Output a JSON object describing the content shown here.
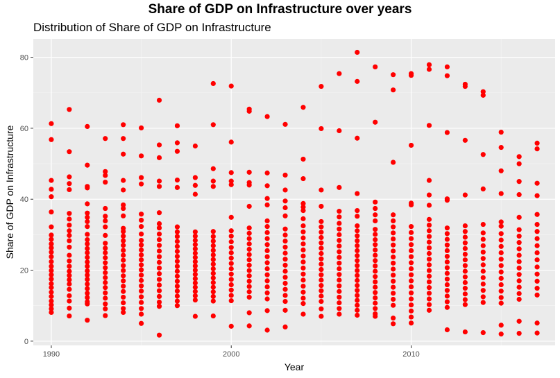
{
  "chart_data": {
    "type": "scatter",
    "title": "Share of GDP on Infrastructure over years",
    "subtitle": "Distribution of Share of GDP on Infrastructure",
    "xlabel": "Year",
    "ylabel": "Share of GDP on Infrastructure",
    "xlim": [
      1989,
      2018
    ],
    "ylim": [
      -1.2,
      85.2
    ],
    "x_ticks": [
      1990,
      2000,
      2010
    ],
    "y_ticks": [
      0,
      20,
      40,
      60,
      80
    ],
    "grid": true,
    "point_color": "#ff0000",
    "panel_color": "#ebebeb",
    "series": [
      {
        "x": 1990,
        "y": [
          61.3,
          56.8,
          45.3,
          42.8,
          40.7,
          36.4,
          32.2,
          29.9,
          28.7,
          27.4,
          26.3,
          25.1,
          23.8,
          22.4,
          21.1,
          19.9,
          18.7,
          17.5,
          16.2,
          15.1,
          13.8,
          12.6,
          11.3,
          10.2,
          9.1,
          8.1
        ]
      },
      {
        "x": 1991,
        "y": [
          65.3,
          53.4,
          46.3,
          44.4,
          42.7,
          36.0,
          34.4,
          32.7,
          31.1,
          29.8,
          28.3,
          26.5,
          24.2,
          22.6,
          21.1,
          19.7,
          18.5,
          17.3,
          16.1,
          14.6,
          12.8,
          11.3,
          9.3,
          7.1
        ]
      },
      {
        "x": 1992,
        "y": [
          60.5,
          49.6,
          43.6,
          43.2,
          38.7,
          36.1,
          34.9,
          33.7,
          32.3,
          30.1,
          28.6,
          27.4,
          26.1,
          24.9,
          23.6,
          22.3,
          21.1,
          19.8,
          18.6,
          17.4,
          16.1,
          14.8,
          13.5,
          12.3,
          11.1,
          10.5,
          5.9
        ]
      },
      {
        "x": 1993,
        "y": [
          57.1,
          47.8,
          46.7,
          44.8,
          37.4,
          35.2,
          33.9,
          32.2,
          29.8,
          27.6,
          26.2,
          24.9,
          23.5,
          22.1,
          20.7,
          19.3,
          17.9,
          16.5,
          15.1,
          13.6,
          12.1,
          10.5,
          9.1,
          7.2
        ]
      },
      {
        "x": 1994,
        "y": [
          61.0,
          57.1,
          52.7,
          45.3,
          42.6,
          38.4,
          37.4,
          35.3,
          31.8,
          30.9,
          29.6,
          28.3,
          27.0,
          25.6,
          24.2,
          22.8,
          21.3,
          19.9,
          18.4,
          17.0,
          15.5,
          14.0,
          12.4,
          10.8,
          9.2,
          8.1
        ]
      },
      {
        "x": 1995,
        "y": [
          60.1,
          52.2,
          46.1,
          44.3,
          35.8,
          34.1,
          32.3,
          30.2,
          28.4,
          27.1,
          25.7,
          24.3,
          22.9,
          21.5,
          20.1,
          18.6,
          17.1,
          15.6,
          14.1,
          12.5,
          10.9,
          9.2,
          7.6,
          5.0
        ]
      },
      {
        "x": 1996,
        "y": [
          67.9,
          55.3,
          51.7,
          45.1,
          43.6,
          36.2,
          33.1,
          31.9,
          30.2,
          28.6,
          27.0,
          25.4,
          23.8,
          22.2,
          20.6,
          19.0,
          17.4,
          15.8,
          14.2,
          12.6,
          11.0,
          9.8,
          1.7
        ]
      },
      {
        "x": 1997,
        "y": [
          60.7,
          55.9,
          53.5,
          45.4,
          43.3,
          32.2,
          30.8,
          29.5,
          28.1,
          26.7,
          25.3,
          23.9,
          22.5,
          21.1,
          19.7,
          18.3,
          16.9,
          15.5,
          14.1,
          12.7,
          11.3,
          10.0
        ]
      },
      {
        "x": 1998,
        "y": [
          55.0,
          46.1,
          43.9,
          41.4,
          30.8,
          29.6,
          28.4,
          27.2,
          26.0,
          24.8,
          23.6,
          22.4,
          21.2,
          20.0,
          18.8,
          17.6,
          16.4,
          15.2,
          14.0,
          12.8,
          11.6,
          7.0
        ]
      },
      {
        "x": 1999,
        "y": [
          72.6,
          61.0,
          48.6,
          45.1,
          43.6,
          30.9,
          29.5,
          28.2,
          26.9,
          25.6,
          24.3,
          23.0,
          21.7,
          20.4,
          19.1,
          17.8,
          16.5,
          15.2,
          13.9,
          12.6,
          11.3,
          7.1
        ]
      },
      {
        "x": 2000,
        "y": [
          71.9,
          56.1,
          47.5,
          45.1,
          44.1,
          34.9,
          31.1,
          29.6,
          28.0,
          26.4,
          24.9,
          23.4,
          21.9,
          20.4,
          18.9,
          17.4,
          15.9,
          14.4,
          12.9,
          11.4,
          4.2
        ]
      },
      {
        "x": 2001,
        "y": [
          65.4,
          64.8,
          47.6,
          44.7,
          44.0,
          38.0,
          31.9,
          30.4,
          28.9,
          27.4,
          25.9,
          24.4,
          22.9,
          21.4,
          19.9,
          18.4,
          16.9,
          15.4,
          13.9,
          12.4,
          8.0,
          4.3
        ]
      },
      {
        "x": 2002,
        "y": [
          63.3,
          47.4,
          43.8,
          40.2,
          38.4,
          33.9,
          32.3,
          30.6,
          28.9,
          27.2,
          25.5,
          23.8,
          22.1,
          20.4,
          18.7,
          17.0,
          15.3,
          13.6,
          11.9,
          8.6,
          3.1
        ]
      },
      {
        "x": 2003,
        "y": [
          61.1,
          46.8,
          42.6,
          39.5,
          37.6,
          35.3,
          31.6,
          29.9,
          28.2,
          26.5,
          24.8,
          23.1,
          21.4,
          19.7,
          18.0,
          16.3,
          14.6,
          12.9,
          11.2,
          8.7,
          4.0
        ]
      },
      {
        "x": 2004,
        "y": [
          65.9,
          51.3,
          45.8,
          38.8,
          37.8,
          36.8,
          34.5,
          32.5,
          30.8,
          29.1,
          27.4,
          25.7,
          24.0,
          22.3,
          20.6,
          18.9,
          17.2,
          15.5,
          13.8,
          12.1,
          10.6,
          7.6
        ]
      },
      {
        "x": 2005,
        "y": [
          71.8,
          59.9,
          42.6,
          38.0,
          33.7,
          32.2,
          30.7,
          29.2,
          27.7,
          26.2,
          24.7,
          23.2,
          21.7,
          20.2,
          18.7,
          17.2,
          15.7,
          14.2,
          12.7,
          11.2,
          9.1,
          7.0
        ]
      },
      {
        "x": 2006,
        "y": [
          75.4,
          59.3,
          43.3,
          36.6,
          35.0,
          33.2,
          31.6,
          30.0,
          28.4,
          26.8,
          25.2,
          23.6,
          22.0,
          20.4,
          18.8,
          17.2,
          15.6,
          14.0,
          12.4,
          10.8,
          9.2,
          7.6
        ]
      },
      {
        "x": 2007,
        "y": [
          81.4,
          73.2,
          57.2,
          41.6,
          36.8,
          35.2,
          32.5,
          31.1,
          29.7,
          28.3,
          26.9,
          25.5,
          24.1,
          22.7,
          21.3,
          19.9,
          18.5,
          17.1,
          15.7,
          14.3,
          12.9,
          11.5,
          10.1,
          8.7,
          7.3
        ]
      },
      {
        "x": 2008,
        "y": [
          77.3,
          61.7,
          39.2,
          37.4,
          35.6,
          33.9,
          31.5,
          30.1,
          28.6,
          27.2,
          25.7,
          24.2,
          22.7,
          21.2,
          19.7,
          18.2,
          16.7,
          15.2,
          13.7,
          12.2,
          10.7,
          9.2,
          7.7,
          7.0
        ]
      },
      {
        "x": 2009,
        "y": [
          75.1,
          70.8,
          50.4,
          35.6,
          33.9,
          32.2,
          30.5,
          28.8,
          27.1,
          25.4,
          23.7,
          22.0,
          20.3,
          18.6,
          16.9,
          15.2,
          13.5,
          11.8,
          10.1,
          6.5,
          4.9
        ]
      },
      {
        "x": 2010,
        "y": [
          75.4,
          74.9,
          55.2,
          38.9,
          38.4,
          32.3,
          30.6,
          28.9,
          27.2,
          25.5,
          23.8,
          22.1,
          20.4,
          18.7,
          17.0,
          15.3,
          13.6,
          11.9,
          10.2,
          8.5,
          6.8,
          5.1
        ]
      },
      {
        "x": 2011,
        "y": [
          77.9,
          76.6,
          60.8,
          45.3,
          41.2,
          38.3,
          34.3,
          32.7,
          31.1,
          29.5,
          27.9,
          26.3,
          24.7,
          23.1,
          21.5,
          19.9,
          18.3,
          16.7,
          15.1,
          13.5,
          11.9,
          10.3,
          8.7
        ]
      },
      {
        "x": 2012,
        "y": [
          77.3,
          74.8,
          58.8,
          40.1,
          39.7,
          31.9,
          30.3,
          28.7,
          27.1,
          25.5,
          23.9,
          22.3,
          20.7,
          19.1,
          17.5,
          15.9,
          14.3,
          12.7,
          11.1,
          9.5,
          3.2
        ]
      },
      {
        "x": 2013,
        "y": [
          72.4,
          71.8,
          56.6,
          41.2,
          32.5,
          30.9,
          29.3,
          27.7,
          26.1,
          24.5,
          22.9,
          21.3,
          19.7,
          18.1,
          16.5,
          14.9,
          13.3,
          11.7,
          10.3,
          2.6
        ]
      },
      {
        "x": 2014,
        "y": [
          70.3,
          69.3,
          52.6,
          42.9,
          32.9,
          30.5,
          28.7,
          26.9,
          25.1,
          23.3,
          21.5,
          19.7,
          17.9,
          16.1,
          14.3,
          12.5,
          10.9,
          2.4
        ]
      },
      {
        "x": 2015,
        "y": [
          58.9,
          54.6,
          48.0,
          41.6,
          33.6,
          32.4,
          30.3,
          28.5,
          26.7,
          24.9,
          23.1,
          21.3,
          19.5,
          17.7,
          15.9,
          14.1,
          12.3,
          10.7,
          4.5,
          2.0
        ]
      },
      {
        "x": 2016,
        "y": [
          52.0,
          50.0,
          45.0,
          41.3,
          34.9,
          31.4,
          29.6,
          27.8,
          26.0,
          24.2,
          22.4,
          20.6,
          18.8,
          17.0,
          15.2,
          13.4,
          11.8,
          5.6,
          2.2
        ]
      },
      {
        "x": 2017,
        "y": [
          55.8,
          54.2,
          44.5,
          41.0,
          35.7,
          32.9,
          30.9,
          28.9,
          26.9,
          24.9,
          22.9,
          20.9,
          18.9,
          16.9,
          14.9,
          13.0,
          5.1,
          2.3
        ]
      }
    ]
  }
}
